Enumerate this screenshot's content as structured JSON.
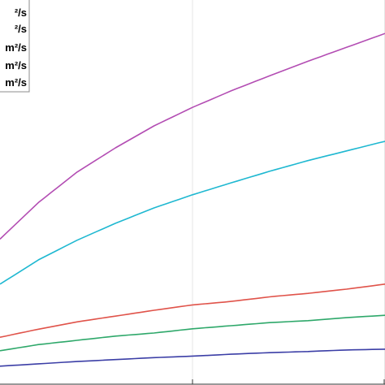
{
  "chart_data": {
    "type": "line",
    "title": "",
    "xlabel": "",
    "ylabel": "",
    "xlim": [
      0,
      100
    ],
    "ylim": [
      0,
      100
    ],
    "grid": true,
    "legend_position": "top-left",
    "x": [
      0,
      10,
      20,
      30,
      40,
      50,
      60,
      70,
      80,
      90,
      100
    ],
    "series": [
      {
        "name": "",
        "legend_label": "²/s",
        "color": "#b34db3",
        "values": [
          37.9,
          47.4,
          55.3,
          61.6,
          67.3,
          72.1,
          76.4,
          80.3,
          84.1,
          87.7,
          91.3
        ]
      },
      {
        "name": "",
        "legend_label": "²/s",
        "color": "#1fb8d1",
        "values": [
          26.2,
          32.5,
          37.6,
          42.0,
          46.0,
          49.4,
          52.5,
          55.5,
          58.3,
          60.8,
          63.3
        ]
      },
      {
        "name": "",
        "legend_label": "m²/s",
        "color": "#e0534a",
        "values": [
          12.4,
          14.5,
          16.4,
          17.9,
          19.4,
          20.8,
          21.7,
          22.9,
          23.8,
          24.9,
          26.2
        ]
      },
      {
        "name": "",
        "legend_label": "m²/s",
        "color": "#2ea86a",
        "values": [
          8.9,
          10.5,
          11.6,
          12.7,
          13.5,
          14.6,
          15.4,
          16.2,
          16.7,
          17.5,
          18.1
        ]
      },
      {
        "name": "",
        "legend_label": "m²/s",
        "color": "#3b3ea6",
        "values": [
          4.9,
          5.5,
          6.1,
          6.6,
          7.1,
          7.5,
          8.0,
          8.4,
          8.7,
          9.1,
          9.3
        ]
      }
    ]
  }
}
